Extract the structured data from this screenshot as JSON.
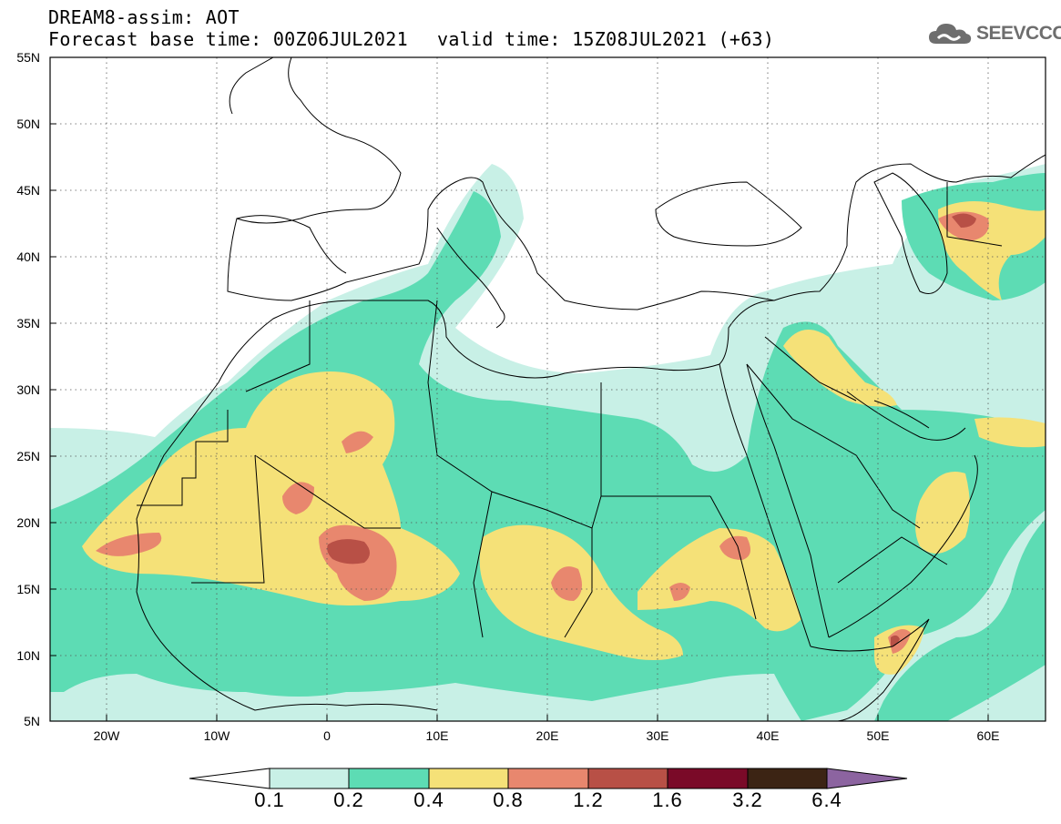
{
  "title": {
    "line1": "DREAM8-assim: AOT",
    "base_time": "Forecast base time: 00Z06JUL2021",
    "valid_time": "valid time: 15Z08JUL2021 (+63)"
  },
  "logo": {
    "text": "SEEVCCC",
    "icon": "cloud-icon"
  },
  "lat_labels": [
    "55N",
    "50N",
    "45N",
    "40N",
    "35N",
    "30N",
    "25N",
    "20N",
    "15N",
    "10N",
    "5N"
  ],
  "lon_labels": [
    "20W",
    "10W",
    "0",
    "10E",
    "20E",
    "30E",
    "40E",
    "50E",
    "60E"
  ],
  "colorbar": {
    "labels": [
      "0.1",
      "0.2",
      "0.4",
      "0.8",
      "1.2",
      "1.6",
      "3.2",
      "6.4"
    ],
    "colors": [
      "#c8f0e6",
      "#5ddcb4",
      "#f5e178",
      "#e8876e",
      "#b85046",
      "#7a0a28",
      "#3c2414",
      "#8c64a0"
    ]
  },
  "map_colors": {
    "level1": "#c8f0e6",
    "level2": "#5ddcb4",
    "level3": "#f5e178",
    "level4": "#e8876e",
    "level5": "#b85046"
  }
}
